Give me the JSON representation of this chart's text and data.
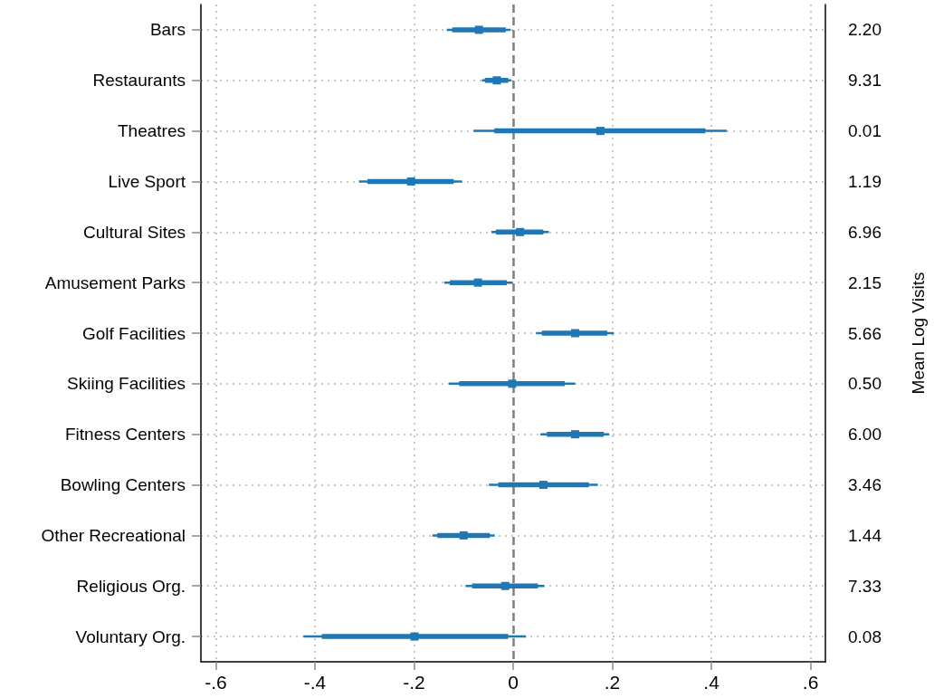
{
  "chart_data": {
    "type": "scatter",
    "orientation": "horizontal",
    "categories": [
      "Bars",
      "Restaurants",
      "Theatres",
      "Live Sport",
      "Cultural Sites",
      "Amusement Parks",
      "Golf Facilities",
      "Skiing Facilities",
      "Fitness Centers",
      "Bowling Centers",
      "Other Recreational",
      "Religious Org.",
      "Voluntary Org."
    ],
    "y2_categories": [
      "2.20",
      "9.31",
      "0.01",
      "1.19",
      "6.96",
      "2.15",
      "5.66",
      "0.50",
      "6.00",
      "3.46",
      "1.44",
      "7.33",
      "0.08"
    ],
    "y2label": "Mean Log Visits",
    "xlim": [
      -0.63,
      0.63
    ],
    "xticks": [
      {
        "value": -0.6,
        "label": "-.6"
      },
      {
        "value": -0.4,
        "label": "-.4"
      },
      {
        "value": -0.2,
        "label": "-.2"
      },
      0,
      {
        "value": 0.2,
        "label": ".2"
      },
      {
        "value": 0.4,
        "label": ".4"
      },
      {
        "value": 0.6,
        "label": ".6"
      }
    ],
    "grid": true,
    "ref_lines": [
      {
        "axis": "x",
        "value": 0,
        "color": "#808080",
        "line_style": "dashed"
      }
    ],
    "series": [
      {
        "type": "bar",
        "color": "#1f77b4",
        "base": [
          -0.123,
          -0.057,
          -0.038,
          -0.294,
          -0.035,
          -0.128,
          0.058,
          -0.109,
          0.068,
          -0.03,
          -0.153,
          -0.083,
          -0.386
        ],
        "values": [
          0.108,
          0.047,
          0.426,
          0.174,
          0.096,
          0.115,
          0.132,
          0.213,
          0.115,
          0.183,
          0.106,
          0.133,
          0.376
        ]
      },
      {
        "color": "#1f77b4",
        "marker": "square",
        "values": [
          -0.069,
          -0.033,
          0.176,
          -0.206,
          0.014,
          -0.071,
          0.125,
          -0.002,
          0.125,
          0.061,
          -0.1,
          -0.016,
          -0.199
        ],
        "errors": [
          [
            -0.134,
            -0.005
          ],
          [
            -0.063,
            -0.004
          ],
          [
            -0.08,
            0.431
          ],
          [
            -0.311,
            -0.103
          ],
          [
            -0.044,
            0.072
          ],
          [
            -0.139,
            -0.001
          ],
          [
            0.046,
            0.203
          ],
          [
            -0.13,
            0.125
          ],
          [
            0.055,
            0.194
          ],
          [
            -0.049,
            0.171
          ],
          [
            -0.163,
            -0.037
          ],
          [
            -0.096,
            0.063
          ],
          [
            -0.423,
            0.026
          ]
        ]
      }
    ]
  }
}
